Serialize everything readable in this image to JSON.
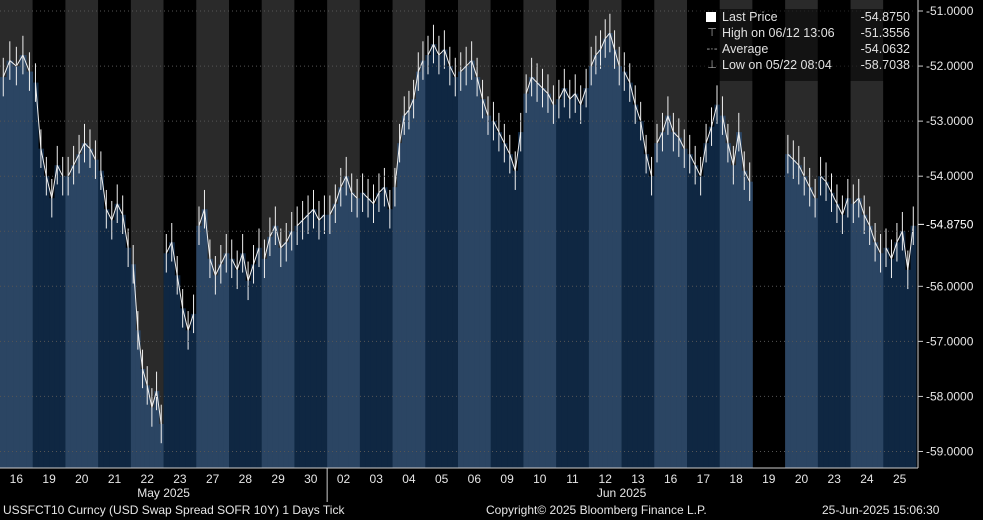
{
  "chart_data": {
    "type": "bar",
    "ticker_line": "USSFCT10 Curncy (USD Swap Spread SOFR 10Y) 1 Days  Tick",
    "copyright": "Copyright© 2025 Bloomberg Finance L.P.",
    "timestamp": "25-Jun-2025 15:06:30",
    "ylim": [
      -59.3,
      -50.8
    ],
    "yticks": [
      -51.0,
      -52.0,
      -53.0,
      -54.0,
      -55.0,
      -56.0,
      -57.0,
      -58.0,
      -59.0
    ],
    "ytick_labels": [
      "-51.0000",
      "-52.0000",
      "-53.0000",
      "-54.0000",
      "-56.0000",
      "-57.0000",
      "-58.0000",
      "-59.0000"
    ],
    "last_value_label": "-54.8750",
    "last_value": -54.875,
    "month_labels": [
      {
        "label": "May 2025",
        "day_index": 3
      },
      {
        "label": "Jun 2025",
        "day_index": 15
      }
    ],
    "legend": [
      {
        "label": "Last Price",
        "value": "-54.8750",
        "symbol": "square"
      },
      {
        "label": "High on 06/12 13:06",
        "value": "-51.3556",
        "symbol": "T"
      },
      {
        "label": "Average",
        "value": "-54.0632",
        "symbol": "dash"
      },
      {
        "label": "Low on 05/22 08:04",
        "value": "-58.7038",
        "symbol": "L"
      }
    ],
    "days": [
      {
        "label": "16",
        "pts": [
          -52.2,
          -51.9,
          -52.0,
          -51.8,
          -52.1
        ]
      },
      {
        "label": "19",
        "pts": [
          -52.3,
          -53.5,
          -54.0,
          -54.4,
          -53.8,
          -54.0
        ]
      },
      {
        "label": "20",
        "pts": [
          -54.0,
          -53.8,
          -53.6,
          -53.4,
          -53.5,
          -53.7
        ]
      },
      {
        "label": "21",
        "pts": [
          -53.9,
          -54.6,
          -54.8,
          -54.5,
          -54.7,
          -55.3
        ]
      },
      {
        "label": "22",
        "pts": [
          -55.6,
          -56.8,
          -57.5,
          -57.8,
          -58.2,
          -57.9,
          -58.5
        ]
      },
      {
        "label": "23",
        "pts": [
          -55.4,
          -55.2,
          -55.8,
          -56.4,
          -56.8,
          -56.5
        ]
      },
      {
        "label": "27",
        "pts": [
          -54.9,
          -54.6,
          -55.5,
          -55.8,
          -55.6,
          -55.4
        ]
      },
      {
        "label": "28",
        "pts": [
          -55.5,
          -55.7,
          -55.4,
          -55.9,
          -55.6,
          -55.3
        ]
      },
      {
        "label": "29",
        "pts": [
          -55.5,
          -55.1,
          -54.9,
          -55.3,
          -55.2,
          -55.0
        ]
      },
      {
        "label": "30",
        "pts": [
          -54.9,
          -54.8,
          -54.7,
          -54.6,
          -54.8,
          -54.7
        ]
      },
      {
        "label": "02",
        "pts": [
          -54.7,
          -54.5,
          -54.2,
          -54.0,
          -54.3,
          -54.4
        ]
      },
      {
        "label": "03",
        "pts": [
          -54.3,
          -54.4,
          -54.5,
          -54.3,
          -54.2,
          -54.6
        ]
      },
      {
        "label": "04",
        "pts": [
          -54.2,
          -53.4,
          -52.9,
          -52.8,
          -52.6,
          -52.1,
          -51.9
        ]
      },
      {
        "label": "05",
        "pts": [
          -51.8,
          -51.6,
          -51.8,
          -51.7,
          -52.0,
          -52.2
        ]
      },
      {
        "label": "06",
        "pts": [
          -52.1,
          -52.0,
          -51.9,
          -52.2,
          -52.6,
          -52.9
        ]
      },
      {
        "label": "09",
        "pts": [
          -53.0,
          -53.2,
          -53.4,
          -53.6,
          -53.9,
          -53.2
        ]
      },
      {
        "label": "10",
        "pts": [
          -52.5,
          -52.2,
          -52.3,
          -52.4,
          -52.5,
          -52.7
        ]
      },
      {
        "label": "11",
        "pts": [
          -52.6,
          -52.4,
          -52.6,
          -52.5,
          -52.7,
          -52.4
        ]
      },
      {
        "label": "12",
        "pts": [
          -52.0,
          -51.8,
          -51.7,
          -51.5,
          -51.4,
          -51.7,
          -52.0
        ]
      },
      {
        "label": "13",
        "pts": [
          -52.1,
          -52.3,
          -52.7,
          -53.0,
          -53.6,
          -54.0
        ]
      },
      {
        "label": "16",
        "pts": [
          -53.4,
          -53.2,
          -52.9,
          -53.2,
          -53.3,
          -53.5
        ]
      },
      {
        "label": "17",
        "pts": [
          -53.6,
          -53.8,
          -54.0,
          -53.4,
          -53.1,
          -52.7
        ]
      },
      {
        "label": "18",
        "pts": [
          -52.9,
          -53.4,
          -53.8,
          -53.2,
          -53.9,
          -54.1
        ]
      },
      {
        "label": "19",
        "pts": []
      },
      {
        "label": "20",
        "pts": [
          -53.6,
          -53.7,
          -53.8,
          -54.0,
          -54.2,
          -54.4
        ]
      },
      {
        "label": "23",
        "pts": [
          -54.0,
          -54.1,
          -54.3,
          -54.5,
          -54.7,
          -54.4
        ]
      },
      {
        "label": "24",
        "pts": [
          -54.5,
          -54.4,
          -54.7,
          -54.9,
          -55.2,
          -55.4
        ]
      },
      {
        "label": "25",
        "pts": [
          -55.3,
          -55.5,
          -55.2,
          -55.0,
          -55.7,
          -54.9
        ]
      }
    ]
  }
}
